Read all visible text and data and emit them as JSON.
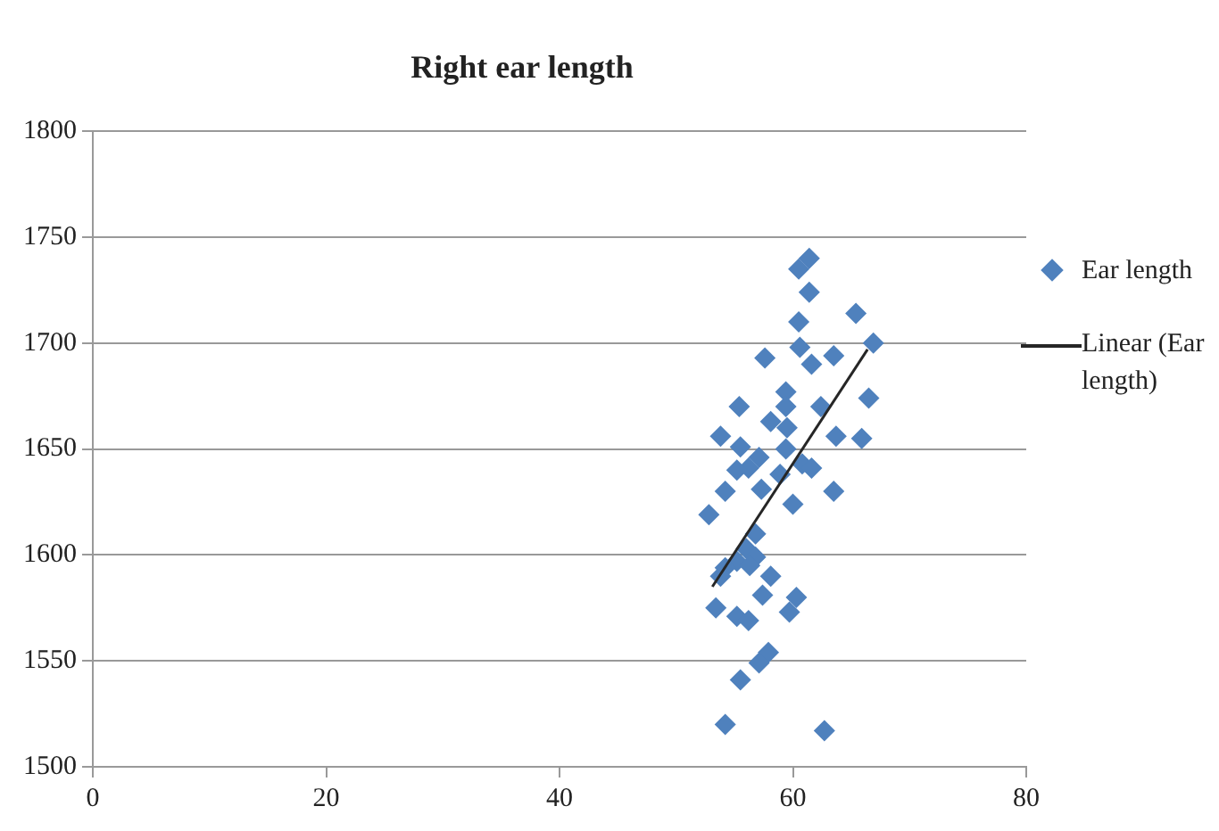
{
  "chart_data": {
    "type": "scatter",
    "title": "Right ear length",
    "xlim": [
      0,
      80
    ],
    "xticks": [
      0,
      20,
      40,
      60,
      80
    ],
    "ylim": [
      1500,
      1800
    ],
    "yticks": [
      1500,
      1550,
      1600,
      1650,
      1700,
      1750,
      1800
    ],
    "grid": "y",
    "legend": "right",
    "marker": "diamond",
    "series": [
      {
        "name": "Ear length",
        "color": "#4f81bd",
        "x": [
          61.4,
          60.5,
          61.4,
          65.4,
          60.5,
          66.9,
          60.6,
          57.6,
          61.6,
          63.5,
          59.4,
          59.4,
          62.4,
          55.4,
          58.1,
          66.5,
          59.5,
          53.8,
          63.7,
          65.9,
          55.5,
          59.4,
          57.1,
          56.2,
          55.2,
          58.9,
          60.8,
          61.6,
          60.0,
          63.5,
          54.2,
          57.3,
          52.8,
          56.8,
          56.0,
          55.2,
          54.2,
          53.8,
          57.9,
          58.1,
          56.8,
          56.3,
          60.3,
          57.4,
          53.4,
          55.2,
          56.2,
          59.7,
          57.9,
          57.1,
          55.5,
          54.6,
          54.2,
          62.7
        ],
        "values": [
          1740,
          1735,
          1724,
          1714,
          1710,
          1700,
          1698,
          1693,
          1690,
          1694,
          1677,
          1670,
          1670,
          1670,
          1663,
          1674,
          1660,
          1656,
          1656,
          1655,
          1651,
          1650,
          1646,
          1641,
          1640,
          1638,
          1643,
          1641,
          1624,
          1630,
          1630,
          1631,
          1619,
          1610,
          1603,
          1597,
          1594,
          1590,
          null,
          1590,
          1599,
          1595,
          1580,
          1581,
          1575,
          1571,
          1569,
          1573,
          1554,
          1549,
          1541,
          null,
          1520,
          1517
        ]
      },
      {
        "name": "Linear (Ear length)",
        "type": "line",
        "color": "#262626",
        "marker": "none",
        "x": [
          53.1,
          66.4
        ],
        "values": [
          1585,
          1697
        ]
      }
    ]
  }
}
